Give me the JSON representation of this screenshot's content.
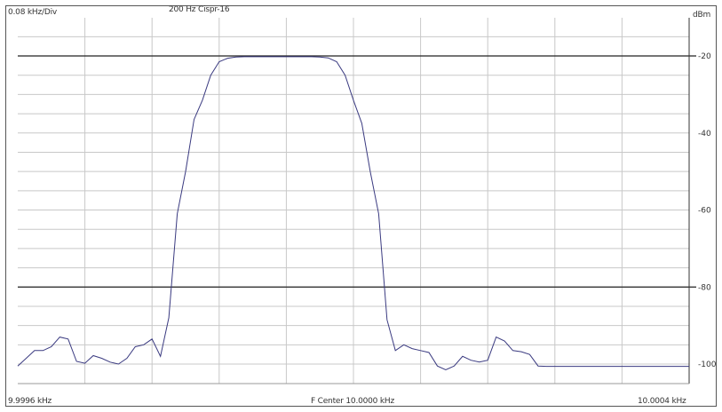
{
  "header": {
    "div_label": "0.08 kHz/Div",
    "filter_label": "200 Hz Cispr-16",
    "unit_label": "dBm"
  },
  "footer": {
    "start_label": "9.9996 kHz",
    "center_label": "F Center 10.0000 kHz",
    "stop_label": "10.0004 kHz"
  },
  "chart_data": {
    "type": "line",
    "title": "200 Hz Cispr-16",
    "xlabel": "",
    "ylabel": "dBm",
    "xlim": [
      9.9996,
      10.0004
    ],
    "ylim": [
      -20,
      -100
    ],
    "y_ticks": [
      -20,
      -40,
      -60,
      -80,
      -100
    ],
    "y_tick_labels": [
      "-20",
      "-40",
      "-60",
      "-80",
      "-100"
    ],
    "grid": true,
    "grid_divisions_x": 10,
    "grid_divisions_y": 16,
    "heavy_grid_y": [
      -20,
      -80
    ],
    "line_color": "#3a3a80",
    "grid_color": "#c8c8c8",
    "series": [
      {
        "x": [
          9.9996,
          9.99961,
          9.99962,
          9.99963,
          9.99964,
          9.99965,
          9.99966,
          9.99967,
          9.99968,
          9.99969,
          9.9997,
          9.99971,
          9.99972,
          9.99973,
          9.99974,
          9.99975,
          9.99976,
          9.99977,
          9.99978,
          9.99979,
          9.9998,
          9.99981,
          9.99982,
          9.99983,
          9.99984,
          9.99985,
          9.99986,
          9.99987,
          9.99988,
          9.99989,
          9.9999,
          9.99991,
          9.99992,
          9.99993,
          9.99994,
          9.99995,
          9.99996,
          9.99997,
          9.99998,
          9.99999,
          10.0,
          10.00001,
          10.00002,
          10.00003,
          10.00004,
          10.00005,
          10.00006,
          10.00007,
          10.00008,
          10.00009,
          10.0001,
          10.00011,
          10.00012,
          10.00013,
          10.00014,
          10.00015,
          10.00016,
          10.00017,
          10.00018,
          10.00019,
          10.0002,
          10.00021,
          10.00022,
          10.00023,
          10.00024,
          10.00025,
          10.00026,
          10.00027,
          10.00028,
          10.00029,
          10.0003,
          10.00031,
          10.00032,
          10.00033,
          10.00034,
          10.00035,
          10.00036,
          10.00037,
          10.00038,
          10.00039,
          10.0004
        ],
        "y": [
          -100.5,
          -98.5,
          -96.5,
          -96.5,
          -95.5,
          -93.0,
          -93.5,
          -99.3,
          -99.8,
          -97.8,
          -98.5,
          -99.5,
          -100.0,
          -98.5,
          -95.5,
          -95.0,
          -93.5,
          -98.0,
          -88.0,
          -61.0,
          -50.0,
          -36.5,
          -31.5,
          -25.0,
          -21.5,
          -20.6,
          -20.3,
          -20.2,
          -20.2,
          -20.2,
          -20.2,
          -20.2,
          -20.2,
          -20.2,
          -20.2,
          -20.2,
          -20.3,
          -20.5,
          -21.5,
          -25.0,
          -31.5,
          -37.5,
          -50.0,
          -61.0,
          -88.5,
          -96.5,
          -95.0,
          -96.0,
          -96.5,
          -97.0,
          -100.5,
          -101.5,
          -100.5,
          -98.0,
          -99.0,
          -99.5,
          -99.0,
          -93.0,
          -94.0,
          -96.5,
          -96.8,
          -97.5,
          -100.5,
          -100.6,
          -100.6,
          -100.6,
          -100.6,
          -100.6,
          -100.6,
          -100.6,
          -100.6,
          -100.6,
          -100.6,
          -100.6,
          -100.6,
          -100.6,
          -100.6,
          -100.6,
          -100.6,
          -100.6,
          -100.6
        ]
      }
    ]
  }
}
